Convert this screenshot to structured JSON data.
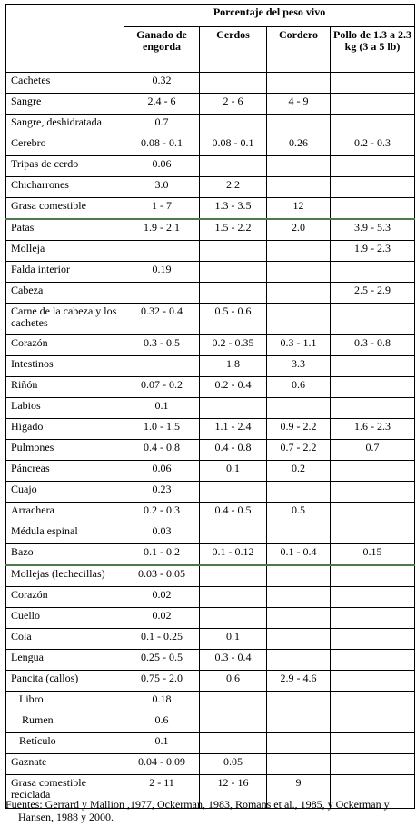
{
  "table": {
    "group_header": "Porcentaje del peso vivo",
    "columns": [
      "Ganado de engorda",
      "Cerdos",
      "Cordero",
      "Pollo de 1.3 a 2.3 kg (3 a 5 lb)"
    ],
    "rows": [
      {
        "label": "Cachetes",
        "values": [
          "0.32",
          "",
          "",
          ""
        ]
      },
      {
        "label": "Sangre",
        "values": [
          "2.4 - 6",
          "2 - 6",
          "4 - 9",
          ""
        ]
      },
      {
        "label": "Sangre, deshidratada",
        "values": [
          "0.7",
          "",
          "",
          ""
        ]
      },
      {
        "label": "Cerebro",
        "values": [
          "0.08 - 0.1",
          "0.08 - 0.1",
          "0.26",
          "0.2 - 0.3"
        ]
      },
      {
        "label": "Tripas de cerdo",
        "values": [
          "0.06",
          "",
          "",
          ""
        ]
      },
      {
        "label": "Chicharrones",
        "values": [
          "3.0",
          "2.2",
          "",
          ""
        ]
      },
      {
        "label": "Grasa comestible",
        "values": [
          "1 - 7",
          "1.3 - 3.5",
          "12",
          ""
        ]
      },
      {
        "label": "Patas",
        "values": [
          "1.9 - 2.1",
          "1.5 - 2.2",
          "2.0",
          "3.9 - 5.3"
        ]
      },
      {
        "label": "Molleja",
        "values": [
          "",
          "",
          "",
          "1.9 - 2.3"
        ]
      },
      {
        "label": "Falda interior",
        "values": [
          "0.19",
          "",
          "",
          ""
        ]
      },
      {
        "label": "Cabeza",
        "values": [
          "",
          "",
          "",
          "2.5 - 2.9"
        ]
      },
      {
        "label": "Carne de la cabeza y los cachetes",
        "values": [
          "0.32 - 0.4",
          "0.5 - 0.6",
          "",
          ""
        ]
      },
      {
        "label": "Corazón",
        "values": [
          "0.3 - 0.5",
          "0.2 - 0.35",
          "0.3 - 1.1",
          "0.3 - 0.8"
        ]
      },
      {
        "label": "Intestinos",
        "values": [
          "",
          "1.8",
          "3.3",
          ""
        ]
      },
      {
        "label": "Riñón",
        "values": [
          "0.07 - 0.2",
          "0.2 - 0.4",
          "0.6",
          ""
        ]
      },
      {
        "label": "Labios",
        "values": [
          "0.1",
          "",
          "",
          ""
        ]
      },
      {
        "label": "Hígado",
        "values": [
          "1.0 - 1.5",
          "1.1 - 2.4",
          "0.9 - 2.2",
          "1.6 - 2.3"
        ]
      },
      {
        "label": "Pulmones",
        "values": [
          "0.4 - 0.8",
          "0.4 - 0.8",
          "0.7 - 2.2",
          "0.7"
        ]
      },
      {
        "label": "Páncreas",
        "values": [
          "0.06",
          "0.1",
          "0.2",
          ""
        ]
      },
      {
        "label": "Cuajo",
        "values": [
          "0.23",
          "",
          "",
          ""
        ]
      },
      {
        "label": "Arrachera",
        "values": [
          "0.2 - 0.3",
          "0.4 - 0.5",
          "0.5",
          ""
        ]
      },
      {
        "label": "Médula espinal",
        "values": [
          "0.03",
          "",
          "",
          ""
        ]
      },
      {
        "label": "Bazo",
        "values": [
          "0.1 - 0.2",
          "0.1 - 0.12",
          "0.1 - 0.4",
          "0.15"
        ]
      },
      {
        "label": "Mollejas (lechecillas)",
        "values": [
          "0.03 - 0.05",
          "",
          "",
          ""
        ]
      },
      {
        "label": "Corazón",
        "values": [
          "0.02",
          "",
          "",
          ""
        ]
      },
      {
        "label": "Cuello",
        "values": [
          "0.02",
          "",
          "",
          ""
        ]
      },
      {
        "label": "Cola",
        "values": [
          "0.1 - 0.25",
          "0.1",
          "",
          ""
        ]
      },
      {
        "label": "Lengua",
        "values": [
          "0.25 - 0.5",
          "0.3 - 0.4",
          "",
          ""
        ]
      },
      {
        "label": "Pancita (callos)",
        "values": [
          "0.75 - 2.0",
          "0.6",
          "2.9 - 4.6",
          ""
        ]
      },
      {
        "label": "Libro",
        "values": [
          "0.18",
          "",
          "",
          ""
        ]
      },
      {
        "label": "Rumen",
        "values": [
          "0.6",
          "",
          "",
          ""
        ]
      },
      {
        "label": "Retículo",
        "values": [
          "0.1",
          "",
          "",
          ""
        ]
      },
      {
        "label": "Gaznate",
        "values": [
          "0.04 - 0.09",
          "0.05",
          "",
          ""
        ]
      },
      {
        "label": "Grasa comestible reciclada",
        "values": [
          "2 - 11",
          "12 - 16",
          "9",
          ""
        ]
      }
    ]
  },
  "source": {
    "line1": "Fuentes: Gerrard y Mallion ,1977, Ockerman, 1983, Romans et al., 1985, y Ockerman y",
    "line2": "Hansen, 1988 y 2000."
  }
}
